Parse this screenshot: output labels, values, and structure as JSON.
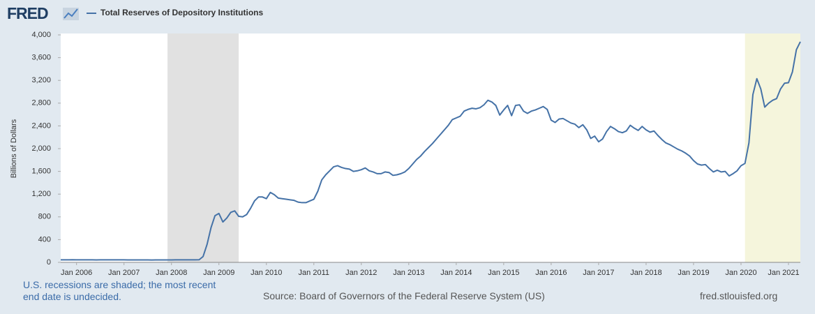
{
  "logo": "FRED",
  "chart_data": {
    "type": "line",
    "ylabel": "Billions of Dollars",
    "note": "U.S. recessions are shaded; the most recent end date is undecided.",
    "source": "Source: Board of Governors of the Federal Reserve System (US)",
    "site": "fred.stlouisfed.org",
    "grid": false,
    "xlim": [
      "2005-09",
      "2021-04"
    ],
    "ylim": [
      0,
      4000
    ],
    "yticks": [
      0,
      400,
      800,
      {
        "value": 1200,
        "label": "1,200"
      },
      {
        "value": 1600,
        "label": "1,600"
      },
      {
        "value": 2000,
        "label": "2,000"
      },
      {
        "value": 2400,
        "label": "2,400"
      },
      {
        "value": 2800,
        "label": "2,800"
      },
      {
        "value": 3200,
        "label": "3,200"
      },
      {
        "value": 3600,
        "label": "3,600"
      },
      {
        "value": 4000,
        "label": "4,000"
      }
    ],
    "xticks": [
      {
        "value": "2006-01",
        "label": "Jan 2006"
      },
      {
        "value": "2007-01",
        "label": "Jan 2007"
      },
      {
        "value": "2008-01",
        "label": "Jan 2008"
      },
      {
        "value": "2009-01",
        "label": "Jan 2009"
      },
      {
        "value": "2010-01",
        "label": "Jan 2010"
      },
      {
        "value": "2011-01",
        "label": "Jan 2011"
      },
      {
        "value": "2012-01",
        "label": "Jan 2012"
      },
      {
        "value": "2013-01",
        "label": "Jan 2013"
      },
      {
        "value": "2014-01",
        "label": "Jan 2014"
      },
      {
        "value": "2015-01",
        "label": "Jan 2015"
      },
      {
        "value": "2016-01",
        "label": "Jan 2016"
      },
      {
        "value": "2017-01",
        "label": "Jan 2017"
      },
      {
        "value": "2018-01",
        "label": "Jan 2018"
      },
      {
        "value": "2019-01",
        "label": "Jan 2019"
      },
      {
        "value": "2020-01",
        "label": "Jan 2020"
      },
      {
        "value": "2021-01",
        "label": "Jan 2021"
      }
    ],
    "recessions": [
      {
        "start": "2007-12",
        "end": "2009-06",
        "color": "#e1e1e1"
      },
      {
        "start": "2020-02",
        "color": "#f5f5dc"
      }
    ],
    "x": [
      "2005-09",
      "2005-10",
      "2005-11",
      "2005-12",
      "2006-01",
      "2006-02",
      "2006-03",
      "2006-04",
      "2006-05",
      "2006-06",
      "2006-07",
      "2006-08",
      "2006-09",
      "2006-10",
      "2006-11",
      "2006-12",
      "2007-01",
      "2007-02",
      "2007-03",
      "2007-04",
      "2007-05",
      "2007-06",
      "2007-07",
      "2007-08",
      "2007-09",
      "2007-10",
      "2007-11",
      "2007-12",
      "2008-01",
      "2008-02",
      "2008-03",
      "2008-04",
      "2008-05",
      "2008-06",
      "2008-07",
      "2008-08",
      "2008-09",
      "2008-10",
      "2008-11",
      "2008-12",
      "2009-01",
      "2009-02",
      "2009-03",
      "2009-04",
      "2009-05",
      "2009-06",
      "2009-07",
      "2009-08",
      "2009-09",
      "2009-10",
      "2009-11",
      "2009-12",
      "2010-01",
      "2010-02",
      "2010-03",
      "2010-04",
      "2010-05",
      "2010-06",
      "2010-07",
      "2010-08",
      "2010-09",
      "2010-10",
      "2010-11",
      "2010-12",
      "2011-01",
      "2011-02",
      "2011-03",
      "2011-04",
      "2011-05",
      "2011-06",
      "2011-07",
      "2011-08",
      "2011-09",
      "2011-10",
      "2011-11",
      "2011-12",
      "2012-01",
      "2012-02",
      "2012-03",
      "2012-04",
      "2012-05",
      "2012-06",
      "2012-07",
      "2012-08",
      "2012-09",
      "2012-10",
      "2012-11",
      "2012-12",
      "2013-01",
      "2013-02",
      "2013-03",
      "2013-04",
      "2013-05",
      "2013-06",
      "2013-07",
      "2013-08",
      "2013-09",
      "2013-10",
      "2013-11",
      "2013-12",
      "2014-01",
      "2014-02",
      "2014-03",
      "2014-04",
      "2014-05",
      "2014-06",
      "2014-07",
      "2014-08",
      "2014-09",
      "2014-10",
      "2014-11",
      "2014-12",
      "2015-01",
      "2015-02",
      "2015-03",
      "2015-04",
      "2015-05",
      "2015-06",
      "2015-07",
      "2015-08",
      "2015-09",
      "2015-10",
      "2015-11",
      "2015-12",
      "2016-01",
      "2016-02",
      "2016-03",
      "2016-04",
      "2016-05",
      "2016-06",
      "2016-07",
      "2016-08",
      "2016-09",
      "2016-10",
      "2016-11",
      "2016-12",
      "2017-01",
      "2017-02",
      "2017-03",
      "2017-04",
      "2017-05",
      "2017-06",
      "2017-07",
      "2017-08",
      "2017-09",
      "2017-10",
      "2017-11",
      "2017-12",
      "2018-01",
      "2018-02",
      "2018-03",
      "2018-04",
      "2018-05",
      "2018-06",
      "2018-07",
      "2018-08",
      "2018-09",
      "2018-10",
      "2018-11",
      "2018-12",
      "2019-01",
      "2019-02",
      "2019-03",
      "2019-04",
      "2019-05",
      "2019-06",
      "2019-07",
      "2019-08",
      "2019-09",
      "2019-10",
      "2019-11",
      "2019-12",
      "2020-01",
      "2020-02",
      "2020-03",
      "2020-04",
      "2020-05",
      "2020-06",
      "2020-07",
      "2020-08",
      "2020-09",
      "2020-10",
      "2020-11",
      "2020-12",
      "2021-01",
      "2021-02",
      "2021-03",
      "2021-04"
    ],
    "series": [
      {
        "name": "Total Reserves of Depository Institutions",
        "color": "#4572a7",
        "values": [
          45,
          45,
          45,
          46,
          45,
          45,
          45,
          44,
          44,
          43,
          44,
          45,
          45,
          44,
          44,
          44,
          44,
          43,
          43,
          43,
          43,
          43,
          43,
          42,
          43,
          43,
          43,
          43,
          43,
          44,
          44,
          44,
          45,
          45,
          45,
          46,
          103,
          315,
          609,
          820,
          860,
          710,
          780,
          880,
          905,
          810,
          800,
          840,
          950,
          1080,
          1150,
          1150,
          1120,
          1230,
          1190,
          1130,
          1120,
          1110,
          1100,
          1090,
          1060,
          1050,
          1050,
          1080,
          1110,
          1250,
          1450,
          1540,
          1610,
          1680,
          1700,
          1670,
          1650,
          1640,
          1600,
          1610,
          1630,
          1660,
          1610,
          1590,
          1560,
          1560,
          1590,
          1580,
          1530,
          1540,
          1560,
          1590,
          1650,
          1730,
          1810,
          1870,
          1950,
          2020,
          2090,
          2170,
          2250,
          2330,
          2410,
          2510,
          2540,
          2570,
          2660,
          2690,
          2710,
          2700,
          2720,
          2770,
          2850,
          2820,
          2760,
          2590,
          2680,
          2760,
          2580,
          2760,
          2770,
          2660,
          2620,
          2660,
          2680,
          2710,
          2740,
          2690,
          2500,
          2460,
          2520,
          2530,
          2490,
          2450,
          2430,
          2370,
          2420,
          2330,
          2180,
          2220,
          2120,
          2170,
          2300,
          2390,
          2350,
          2300,
          2280,
          2310,
          2410,
          2360,
          2320,
          2390,
          2330,
          2290,
          2310,
          2230,
          2160,
          2100,
          2070,
          2030,
          1990,
          1960,
          1920,
          1870,
          1790,
          1730,
          1710,
          1720,
          1650,
          1590,
          1620,
          1590,
          1600,
          1520,
          1560,
          1610,
          1700,
          1740,
          2100,
          2950,
          3230,
          3050,
          2730,
          2800,
          2850,
          2880,
          3050,
          3150,
          3160,
          3350,
          3740,
          3880
        ]
      }
    ]
  }
}
